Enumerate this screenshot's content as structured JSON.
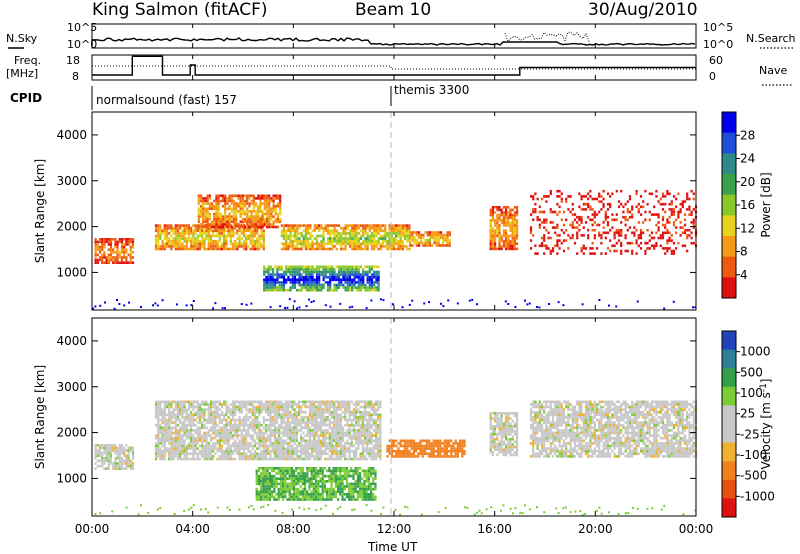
{
  "header": {
    "station": "King Salmon (fitACF)",
    "beam": "Beam 10",
    "date": "30/Aug/2010"
  },
  "top_panel": {
    "nsky_label": "N.Sky",
    "nsearch_label": "N.Search",
    "left_ticks": [
      "10^5",
      "10^0"
    ],
    "right_ticks": [
      "10^5",
      "10^0"
    ],
    "freq_label_line1": "Freq.",
    "freq_label_line2": "[MHz]",
    "freq_ticks": [
      "18",
      "8"
    ],
    "nave_label": "Nave",
    "nave_ticks": [
      "60",
      "0"
    ],
    "cpid_label": "CPID",
    "modes": [
      "normalsound (fast) 157",
      "themis 3300"
    ]
  },
  "x_axis": {
    "label": "Time UT",
    "ticks": [
      "00:00",
      "04:00",
      "08:00",
      "12:00",
      "16:00",
      "20:00",
      "00:00"
    ]
  },
  "power_colorbar": {
    "label": "Power [dB]",
    "ticks": [
      "28",
      "24",
      "20",
      "16",
      "12",
      "8",
      "4"
    ],
    "colors": [
      "#0000ee",
      "#1e4fd8",
      "#2f8a8a",
      "#3aa04a",
      "#88c82a",
      "#e6d21a",
      "#f59a14",
      "#ee5a10",
      "#e01010"
    ]
  },
  "velocity_colorbar": {
    "label": "Velocity [m s",
    "label_sup": "-1",
    "label_end": "]",
    "ticks": [
      "1000",
      "500",
      "100",
      "25",
      "-25",
      "-100",
      "-500",
      "-1000"
    ],
    "colors": [
      "#2244bb",
      "#2f7f9a",
      "#35a04a",
      "#7ccc33",
      "#c8c8c8",
      "#c8c8c8",
      "#f0b030",
      "#f08020",
      "#e85010",
      "#e01010"
    ]
  },
  "chart_data": [
    {
      "type": "heatmap",
      "title": "Power",
      "xlabel": "Time UT",
      "ylabel": "Slant Range [km]",
      "x_range_hours": [
        0,
        24
      ],
      "y_ticks": [
        1000,
        2000,
        3000,
        4000
      ],
      "ylim": [
        180,
        4500
      ],
      "regions": [
        {
          "t0": 0.1,
          "t1": 1.6,
          "r0": 1200,
          "r1": 1750,
          "level": 8
        },
        {
          "t0": 2.5,
          "t1": 6.8,
          "r0": 1500,
          "r1": 2050,
          "level": 12
        },
        {
          "t0": 4.2,
          "t1": 7.5,
          "r0": 2000,
          "r1": 2700,
          "level": 10
        },
        {
          "t0": 6.8,
          "t1": 11.4,
          "r0": 600,
          "r1": 1150,
          "level": 26
        },
        {
          "t0": 7.5,
          "t1": 12.6,
          "r0": 1500,
          "r1": 2050,
          "level": 14
        },
        {
          "t0": 12.6,
          "t1": 14.2,
          "r0": 1600,
          "r1": 1900,
          "level": 12
        },
        {
          "t0": 15.8,
          "t1": 16.9,
          "r0": 1500,
          "r1": 2450,
          "level": 10
        },
        {
          "t0": 17.4,
          "t1": 24.0,
          "r0": 1400,
          "r1": 2800,
          "level": 4
        }
      ]
    },
    {
      "type": "heatmap",
      "title": "Velocity",
      "xlabel": "Time UT",
      "ylabel": "Slant Range [km]",
      "x_range_hours": [
        0,
        24
      ],
      "y_ticks": [
        1000,
        2000,
        3000,
        4000
      ],
      "ylim": [
        180,
        4500
      ],
      "regions": [
        {
          "t0": 0.1,
          "t1": 1.6,
          "r0": 1200,
          "r1": 1750,
          "velocity": 0
        },
        {
          "t0": 2.5,
          "t1": 11.5,
          "r0": 1400,
          "r1": 2700,
          "velocity": 0
        },
        {
          "t0": 6.5,
          "t1": 11.3,
          "r0": 550,
          "r1": 1250,
          "velocity": 60
        },
        {
          "t0": 11.7,
          "t1": 14.8,
          "r0": 1500,
          "r1": 1850,
          "velocity": -300
        },
        {
          "t0": 15.8,
          "t1": 16.9,
          "r0": 1500,
          "r1": 2450,
          "velocity": 0
        },
        {
          "t0": 17.4,
          "t1": 24.0,
          "r0": 1500,
          "r1": 2700,
          "velocity": 0
        }
      ]
    }
  ]
}
